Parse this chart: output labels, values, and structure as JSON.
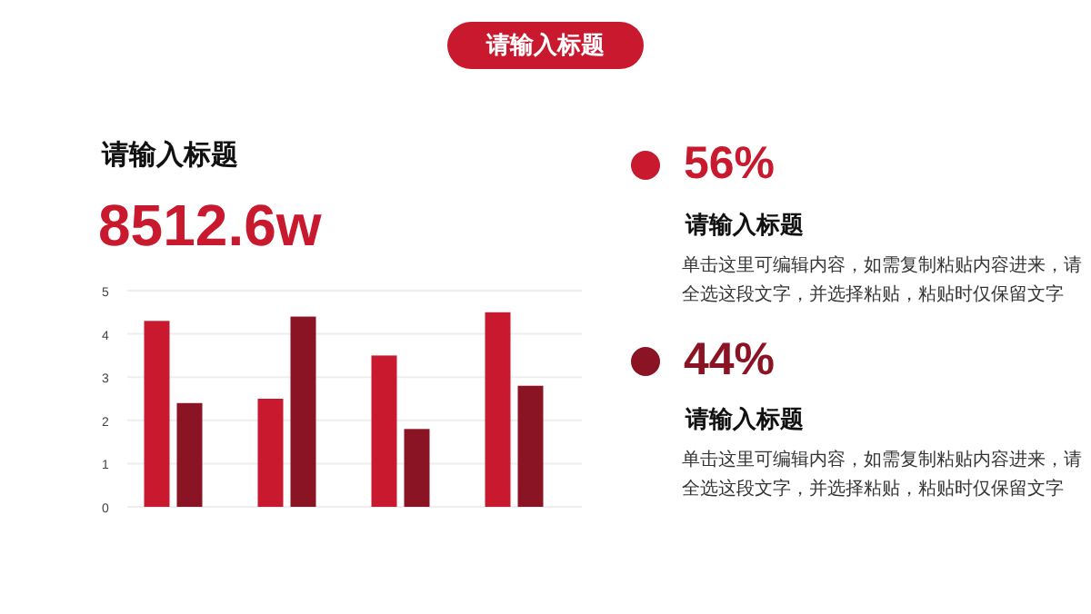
{
  "chart_data": {
    "type": "bar",
    "title": "请输入标题",
    "subtitle": "请输入标题",
    "categories": [
      null,
      null,
      null,
      null
    ],
    "series": [
      {
        "color": "#c8192e",
        "values": [
          4.3,
          2.5,
          3.5,
          4.5
        ]
      },
      {
        "color": "#8b1424",
        "values": [
          2.4,
          4.4,
          1.8,
          2.8
        ]
      }
    ],
    "ylim": [
      0,
      5
    ],
    "yticks": [
      0,
      1,
      2,
      3,
      4,
      5
    ],
    "grid": "y",
    "annotations": [
      "8512.6w",
      "56%",
      "请输入标题",
      "单击这里可编辑内容，如需复制粘贴内容进来，请全选这段文字，并选择粘贴，粘贴时仅保留文字",
      "44%",
      "请输入标题",
      "单击这里可编辑内容，如需复制粘贴内容进来，请全选这段文字，并选择粘贴，粘贴时仅保留文字"
    ]
  }
}
